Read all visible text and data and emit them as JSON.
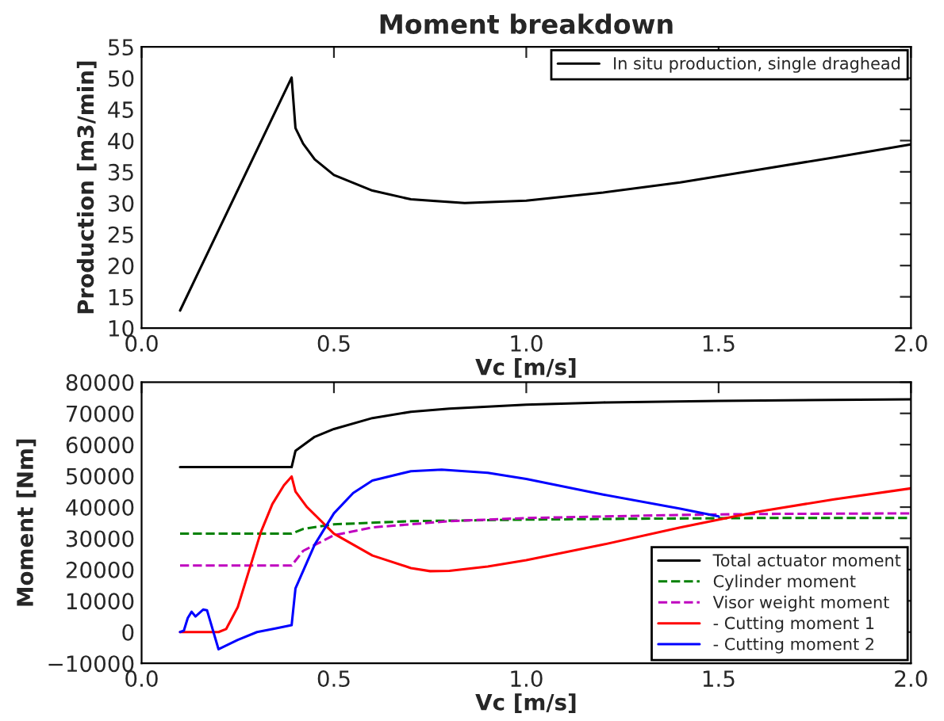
{
  "chart_data": [
    {
      "type": "line",
      "title": "Moment breakdown",
      "xlabel": "Vc [m/s]",
      "ylabel": "Production [m3/min]",
      "xlim": [
        0.0,
        2.0
      ],
      "xticks": [
        {
          "value": 0,
          "label": "0.0"
        },
        {
          "value": 0.5,
          "label": "0.5"
        },
        {
          "value": 1,
          "label": "1.0"
        },
        {
          "value": 1.5,
          "label": "1.5"
        },
        {
          "value": 2,
          "label": "2.0"
        }
      ],
      "ylim": [
        10,
        55
      ],
      "yticks": [
        10,
        15,
        20,
        25,
        30,
        35,
        40,
        45,
        50,
        55
      ],
      "grid": false,
      "legend": "top right",
      "series": [
        {
          "name": "In situ production, single draghead",
          "color": "#000000",
          "line_style": "solid",
          "x": [
            0.1,
            0.39,
            0.4,
            0.42,
            0.45,
            0.5,
            0.6,
            0.7,
            0.84,
            1.0,
            1.2,
            1.4,
            1.6,
            1.8,
            2.0
          ],
          "values": [
            12.8,
            50.1,
            42,
            39.5,
            37,
            34.5,
            32,
            30.6,
            30,
            30.4,
            31.7,
            33.3,
            35.3,
            37.3,
            39.4
          ]
        }
      ]
    },
    {
      "type": "line",
      "xlabel": "Vc [m/s]",
      "ylabel": "Moment [Nm]",
      "xlim": [
        0.0,
        2.0
      ],
      "xticks": [
        {
          "value": 0,
          "label": "0.0"
        },
        0.5,
        {
          "value": 1,
          "label": "1.0"
        },
        1.5,
        {
          "value": 2,
          "label": "2.0"
        }
      ],
      "ylim": [
        -10000,
        80000
      ],
      "yticks": [
        {
          "value": -10000,
          "label": "−10000"
        },
        0,
        10000,
        20000,
        30000,
        40000,
        50000,
        60000,
        70000,
        80000
      ],
      "grid": false,
      "legend": "bottom right",
      "series": [
        {
          "name": "Total actuator moment",
          "color": "#000000",
          "line_style": "solid",
          "x": [
            0.1,
            0.39,
            0.4,
            0.45,
            0.5,
            0.6,
            0.7,
            0.8,
            1.0,
            1.2,
            1.5,
            2.0
          ],
          "values": [
            52800,
            52800,
            58000,
            62500,
            65000,
            68500,
            70500,
            71500,
            72800,
            73500,
            74000,
            74500
          ]
        },
        {
          "name": "Cylinder moment",
          "color": "#008000",
          "line_style": "dashed",
          "x": [
            0.1,
            0.39,
            0.42,
            0.5,
            0.7,
            1.0,
            1.3,
            1.6,
            2.0
          ],
          "values": [
            31500,
            31500,
            33000,
            34500,
            35500,
            36000,
            36300,
            36500,
            36500
          ]
        },
        {
          "name": "Visor weight moment",
          "color": "#bf00bf",
          "line_style": "dashed",
          "x": [
            0.1,
            0.39,
            0.42,
            0.5,
            0.6,
            0.8,
            1.0,
            1.2,
            1.4,
            1.6,
            2.0
          ],
          "values": [
            21300,
            21300,
            26000,
            31000,
            33500,
            35500,
            36500,
            37000,
            37500,
            37800,
            38000
          ]
        },
        {
          "name": "- Cutting moment 1",
          "color": "#ff0000",
          "line_style": "solid",
          "x": [
            0.1,
            0.2,
            0.22,
            0.25,
            0.28,
            0.31,
            0.34,
            0.37,
            0.39,
            0.4,
            0.43,
            0.5,
            0.6,
            0.7,
            0.75,
            0.8,
            0.9,
            1.0,
            1.2,
            1.4,
            1.6,
            1.8,
            2.0
          ],
          "values": [
            0,
            0,
            1000,
            8000,
            20000,
            32000,
            41000,
            47000,
            49800,
            45000,
            40000,
            31500,
            24500,
            20500,
            19500,
            19600,
            21000,
            23000,
            28000,
            33500,
            38500,
            42500,
            46000
          ]
        },
        {
          "name": "- Cutting moment 2",
          "color": "#0000ff",
          "line_style": "solid",
          "x": [
            0.1,
            0.11,
            0.12,
            0.13,
            0.14,
            0.16,
            0.17,
            0.2,
            0.25,
            0.3,
            0.35,
            0.39,
            0.4,
            0.45,
            0.5,
            0.55,
            0.6,
            0.7,
            0.78,
            0.9,
            1.0,
            1.2,
            1.4,
            1.5
          ],
          "values": [
            0,
            500,
            4500,
            6500,
            5000,
            7200,
            7000,
            -5500,
            -2500,
            0,
            1200,
            2200,
            14000,
            28000,
            38000,
            44500,
            48500,
            51500,
            52000,
            51000,
            49000,
            44000,
            39500,
            37000
          ]
        }
      ]
    }
  ]
}
